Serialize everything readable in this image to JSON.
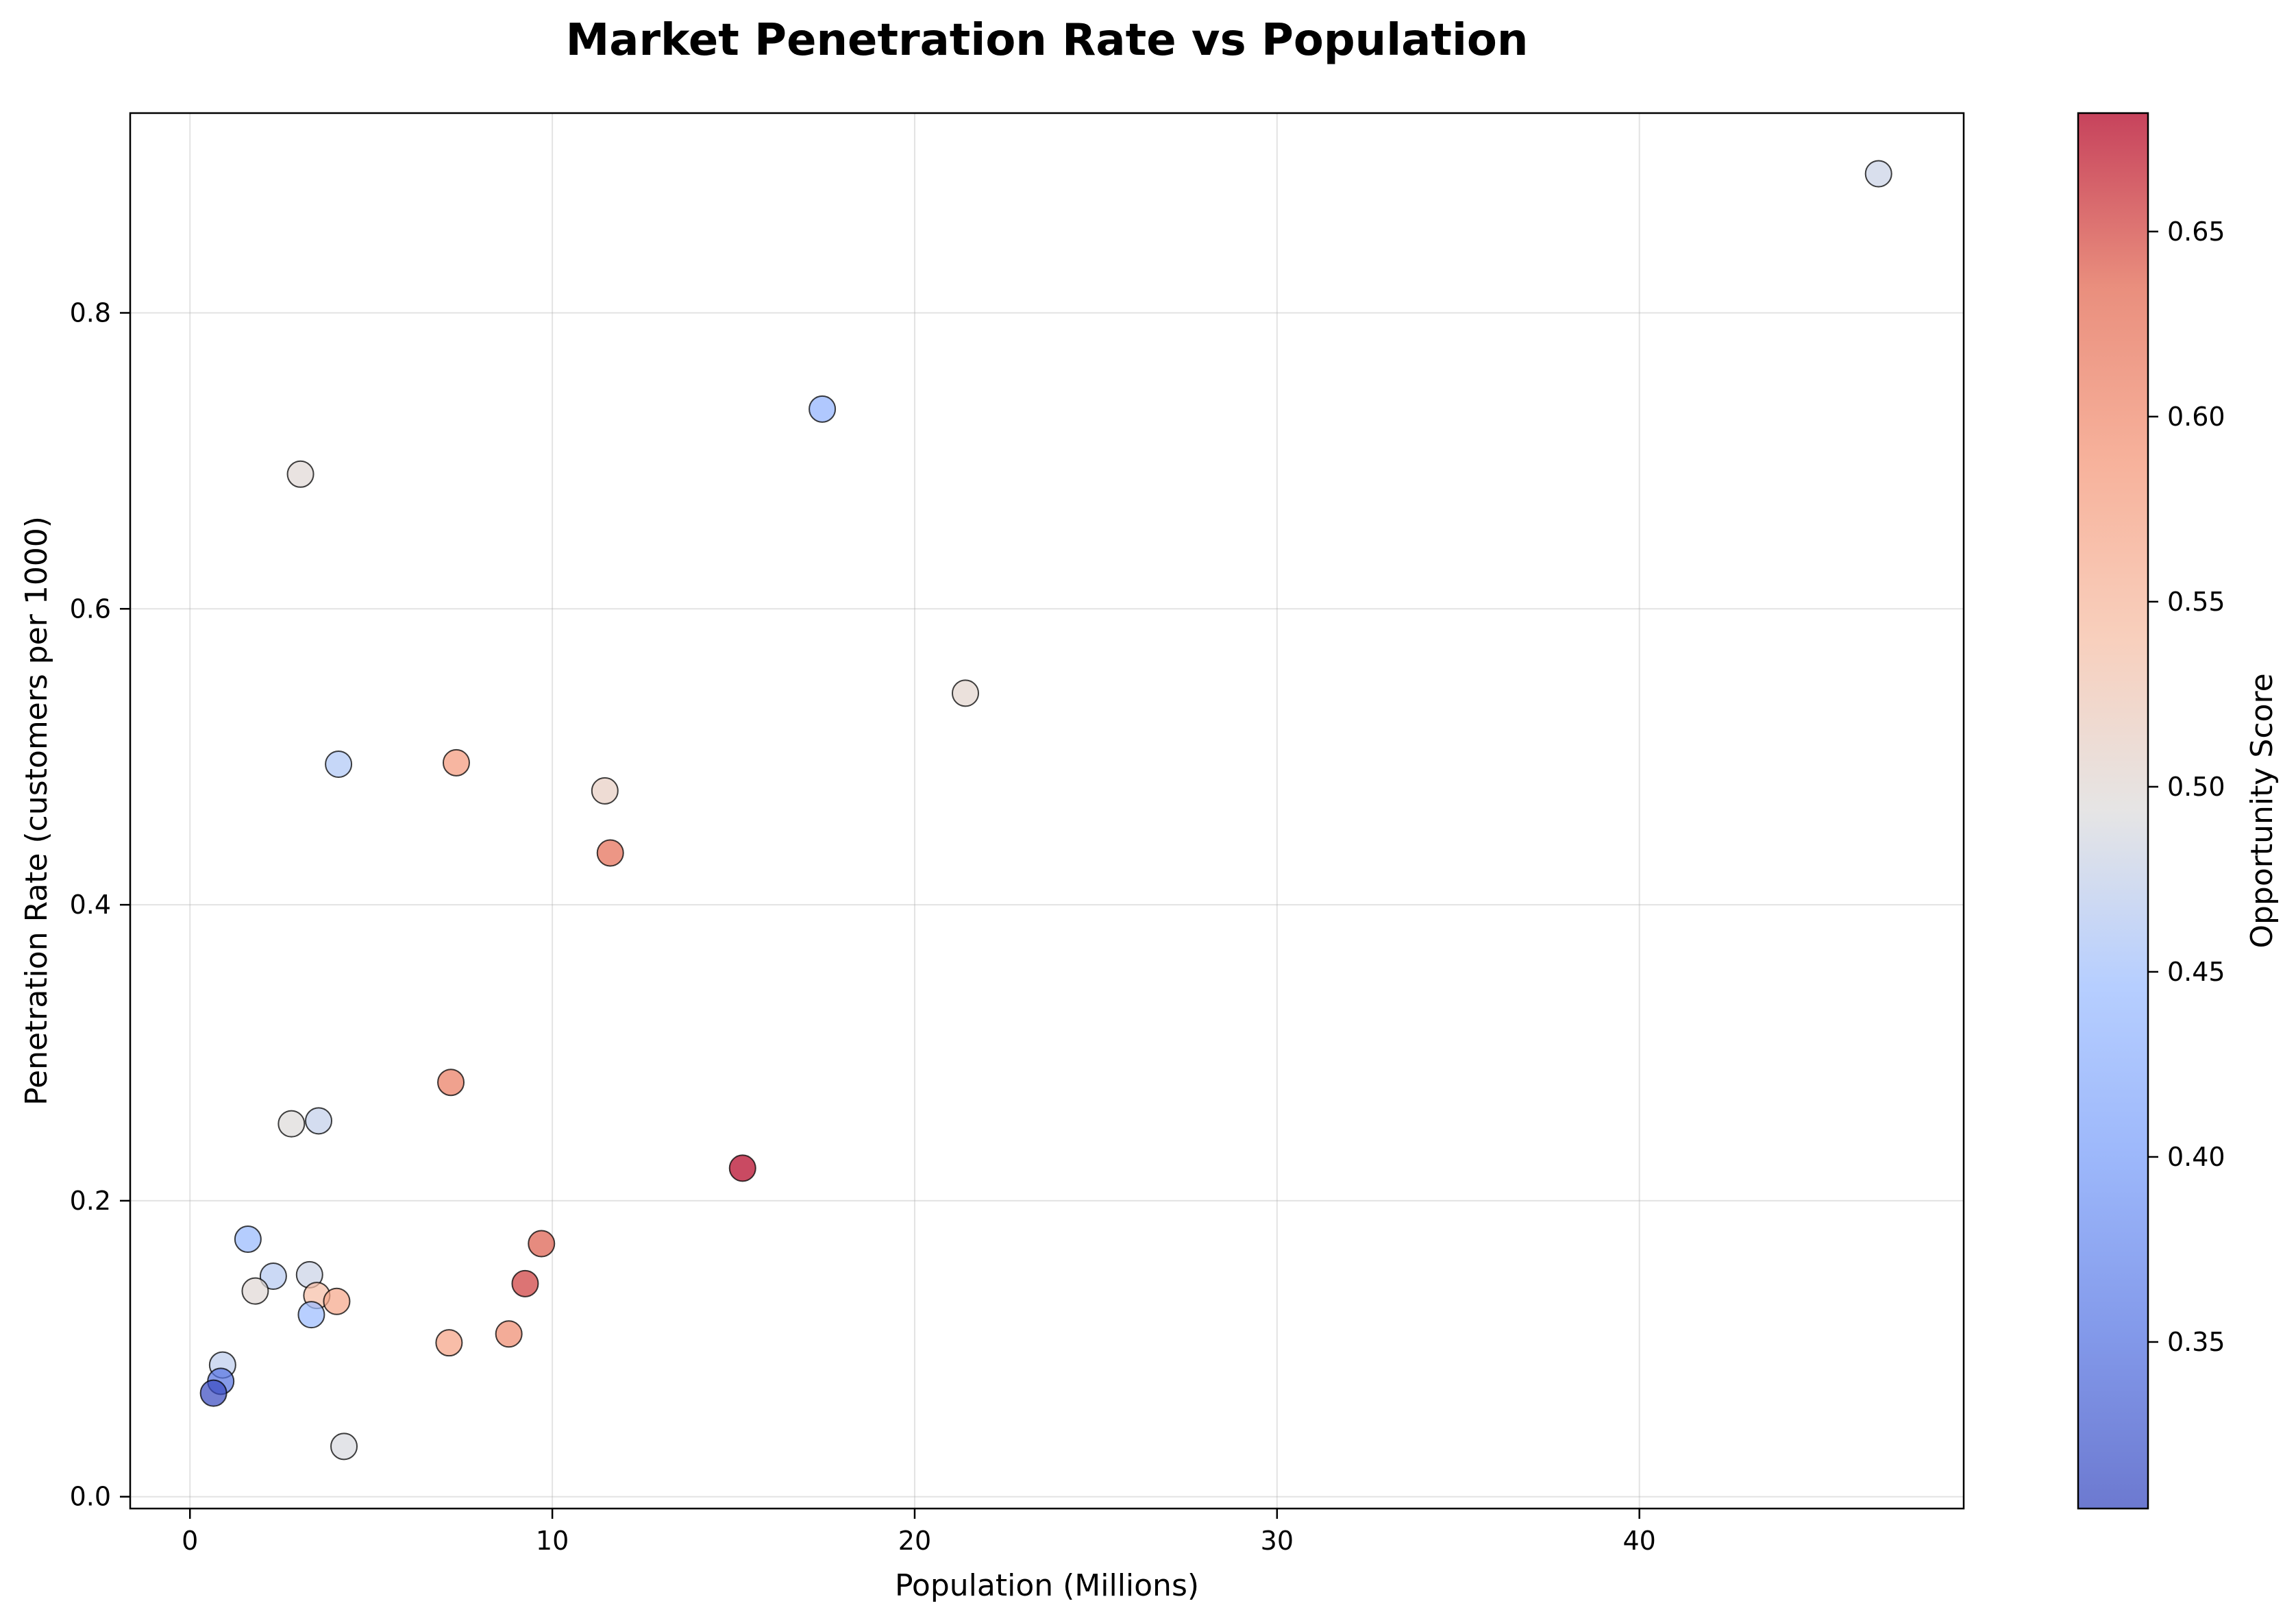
{
  "chart_data": {
    "type": "scatter",
    "title": "Market Penetration Rate vs Population",
    "xlabel": "Population (Millions)",
    "ylabel": "Penetration Rate (customers per 1000)",
    "xlim": [
      -1.65,
      48.95
    ],
    "ylim": [
      -0.008,
      0.935
    ],
    "xticks": [
      0,
      10,
      20,
      30,
      40
    ],
    "yticks": [
      0.0,
      0.2,
      0.4,
      0.6,
      0.8
    ],
    "xtick_labels": [
      "0",
      "10",
      "20",
      "30",
      "40"
    ],
    "ytick_labels": [
      "0.0",
      "0.2",
      "0.4",
      "0.6",
      "0.8"
    ],
    "grid": true,
    "colorbar": {
      "label": "Opportunity Score",
      "colormap": "coolwarm",
      "range": [
        0.305,
        0.682
      ],
      "ticks": [
        0.35,
        0.4,
        0.45,
        0.5,
        0.55,
        0.6,
        0.65
      ],
      "tick_labels": [
        "0.35",
        "0.40",
        "0.45",
        "0.50",
        "0.55",
        "0.60",
        "0.65"
      ]
    },
    "points": [
      {
        "x": 46.6,
        "y": 0.894,
        "c": 0.48
      },
      {
        "x": 17.45,
        "y": 0.735,
        "c": 0.43
      },
      {
        "x": 3.05,
        "y": 0.691,
        "c": 0.5
      },
      {
        "x": 21.4,
        "y": 0.543,
        "c": 0.505
      },
      {
        "x": 4.1,
        "y": 0.495,
        "c": 0.46
      },
      {
        "x": 7.35,
        "y": 0.496,
        "c": 0.585
      },
      {
        "x": 11.45,
        "y": 0.477,
        "c": 0.515
      },
      {
        "x": 11.6,
        "y": 0.435,
        "c": 0.63
      },
      {
        "x": 7.2,
        "y": 0.28,
        "c": 0.615
      },
      {
        "x": 2.8,
        "y": 0.252,
        "c": 0.495
      },
      {
        "x": 3.55,
        "y": 0.254,
        "c": 0.475
      },
      {
        "x": 15.25,
        "y": 0.222,
        "c": 0.682
      },
      {
        "x": 1.6,
        "y": 0.174,
        "c": 0.44
      },
      {
        "x": 9.7,
        "y": 0.171,
        "c": 0.64
      },
      {
        "x": 2.3,
        "y": 0.149,
        "c": 0.465
      },
      {
        "x": 3.3,
        "y": 0.15,
        "c": 0.48
      },
      {
        "x": 9.25,
        "y": 0.144,
        "c": 0.655
      },
      {
        "x": 1.8,
        "y": 0.139,
        "c": 0.5
      },
      {
        "x": 3.5,
        "y": 0.136,
        "c": 0.54
      },
      {
        "x": 4.05,
        "y": 0.132,
        "c": 0.57
      },
      {
        "x": 3.35,
        "y": 0.123,
        "c": 0.445
      },
      {
        "x": 8.8,
        "y": 0.11,
        "c": 0.6
      },
      {
        "x": 7.15,
        "y": 0.104,
        "c": 0.575
      },
      {
        "x": 0.9,
        "y": 0.089,
        "c": 0.47
      },
      {
        "x": 0.85,
        "y": 0.078,
        "c": 0.35
      },
      {
        "x": 0.65,
        "y": 0.07,
        "c": 0.305
      },
      {
        "x": 4.25,
        "y": 0.034,
        "c": 0.49
      }
    ]
  }
}
